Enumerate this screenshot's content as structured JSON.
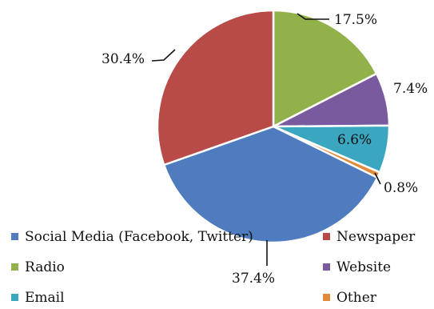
{
  "chart_data": {
    "type": "pie",
    "title": "",
    "legend_position": "bottom",
    "slices": [
      {
        "name": "Radio",
        "value": 17.5,
        "label": "17.5%",
        "color": "#93b14a"
      },
      {
        "name": "Website",
        "value": 7.4,
        "label": "7.4%",
        "color": "#7a5a9e"
      },
      {
        "name": "Email",
        "value": 6.6,
        "label": "6.6%",
        "color": "#3aa6c0"
      },
      {
        "name": "Other",
        "value": 0.8,
        "label": "0.8%",
        "color": "#e08a3a"
      },
      {
        "name": "Social Media (Facebook, Twitter)",
        "value": 37.4,
        "label": "37.4%",
        "color": "#4f7bbf"
      },
      {
        "name": "Newspaper",
        "value": 30.4,
        "label": "30.4%",
        "color": "#b84a47"
      }
    ],
    "legend": [
      "Social Media (Facebook, Twitter)",
      "Newspaper",
      "Radio",
      "Website",
      "Email",
      "Other"
    ]
  }
}
